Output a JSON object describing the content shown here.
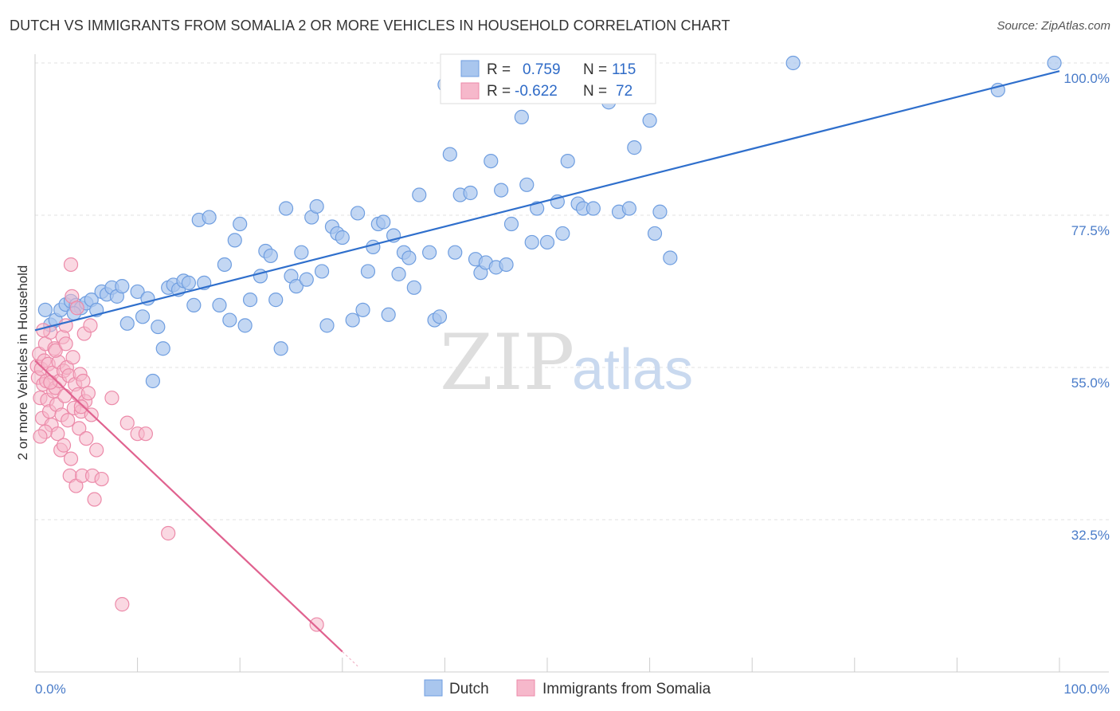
{
  "title": "DUTCH VS IMMIGRANTS FROM SOMALIA 2 OR MORE VEHICLES IN HOUSEHOLD CORRELATION CHART",
  "source": "Source: ZipAtlas.com",
  "watermark": {
    "zip": "ZIP",
    "atlas": "atlas"
  },
  "colors": {
    "dutch_fill": "#a9c6ee",
    "dutch_stroke": "#6f9ee0",
    "dutch_line": "#2f6fcc",
    "somalia_fill": "#f6b8cb",
    "somalia_stroke": "#ec8aa9",
    "somalia_line": "#e0628f",
    "grid": "#e2e2e2",
    "tick_label": "#4a7cc9"
  },
  "legend_top": {
    "rows": [
      {
        "r_label": "R =",
        "r_value": "0.759",
        "n_label": "N =",
        "n_value": "115"
      },
      {
        "r_label": "R =",
        "r_value": "-0.622",
        "n_label": "N =",
        "n_value": "72"
      }
    ]
  },
  "legend_bottom": {
    "items": [
      "Dutch",
      "Immigrants from Somalia"
    ]
  },
  "chart_data": {
    "type": "scatter",
    "ylabel": "2 or more Vehicles in Household",
    "xlabel": "",
    "x_tick_labels": [
      "0.0%",
      "100.0%"
    ],
    "y_tick_labels": [
      "100.0%",
      "77.5%",
      "55.0%",
      "32.5%"
    ],
    "y_ticks": [
      100.0,
      77.5,
      55.0,
      32.5
    ],
    "xlim": [
      0,
      100
    ],
    "ylim": [
      12.5,
      102
    ],
    "grid": true,
    "legend": "top-center and bottom",
    "series": [
      {
        "name": "Dutch",
        "r": 0.759,
        "n": 115,
        "trend": {
          "x": [
            0,
            100
          ],
          "y": [
            60.5,
            98.8
          ]
        },
        "points": [
          [
            1.5,
            61.3
          ],
          [
            2.0,
            62.0
          ],
          [
            2.5,
            63.5
          ],
          [
            3.0,
            64.3
          ],
          [
            3.5,
            64.8
          ],
          [
            4.0,
            64.2
          ],
          [
            4.5,
            63.8
          ],
          [
            5.0,
            64.5
          ],
          [
            5.5,
            65.0
          ],
          [
            6.0,
            63.5
          ],
          [
            6.5,
            66.2
          ],
          [
            7.0,
            65.8
          ],
          [
            7.5,
            66.8
          ],
          [
            8.0,
            65.5
          ],
          [
            8.5,
            67.0
          ],
          [
            9.0,
            61.5
          ],
          [
            10.0,
            66.2
          ],
          [
            10.5,
            62.5
          ],
          [
            11.0,
            65.2
          ],
          [
            11.5,
            53.0
          ],
          [
            12.0,
            61.0
          ],
          [
            12.5,
            57.8
          ],
          [
            13.0,
            66.8
          ],
          [
            13.5,
            67.2
          ],
          [
            14.0,
            66.5
          ],
          [
            14.5,
            67.8
          ],
          [
            15.0,
            67.5
          ],
          [
            15.5,
            64.2
          ],
          [
            16.0,
            76.8
          ],
          [
            16.5,
            67.5
          ],
          [
            17.0,
            77.2
          ],
          [
            18.0,
            64.2
          ],
          [
            18.5,
            70.2
          ],
          [
            19.0,
            62.0
          ],
          [
            19.5,
            73.8
          ],
          [
            20.0,
            76.2
          ],
          [
            20.5,
            61.2
          ],
          [
            21.0,
            65.0
          ],
          [
            22.0,
            68.5
          ],
          [
            22.5,
            72.2
          ],
          [
            23.0,
            71.5
          ],
          [
            23.5,
            65.0
          ],
          [
            24.0,
            57.8
          ],
          [
            24.5,
            78.5
          ],
          [
            25.0,
            68.5
          ],
          [
            25.5,
            67.0
          ],
          [
            26.0,
            72.0
          ],
          [
            26.5,
            68.0
          ],
          [
            27.0,
            77.2
          ],
          [
            27.5,
            78.8
          ],
          [
            28.0,
            69.2
          ],
          [
            28.5,
            61.2
          ],
          [
            29.0,
            75.8
          ],
          [
            29.5,
            74.8
          ],
          [
            30.0,
            74.2
          ],
          [
            31.0,
            62.0
          ],
          [
            31.5,
            77.8
          ],
          [
            32.0,
            63.5
          ],
          [
            32.5,
            69.2
          ],
          [
            33.0,
            72.8
          ],
          [
            33.5,
            76.2
          ],
          [
            34.0,
            76.5
          ],
          [
            34.5,
            62.8
          ],
          [
            35.0,
            74.5
          ],
          [
            35.5,
            68.8
          ],
          [
            36.0,
            72.0
          ],
          [
            36.5,
            71.2
          ],
          [
            37.0,
            66.8
          ],
          [
            37.5,
            80.5
          ],
          [
            38.5,
            72.0
          ],
          [
            39.0,
            62.0
          ],
          [
            39.5,
            62.5
          ],
          [
            40.0,
            96.8
          ],
          [
            40.5,
            86.5
          ],
          [
            41.0,
            72.0
          ],
          [
            41.5,
            80.5
          ],
          [
            42.5,
            80.8
          ],
          [
            43.0,
            71.0
          ],
          [
            43.5,
            69.0
          ],
          [
            44.0,
            70.5
          ],
          [
            44.5,
            85.5
          ],
          [
            45.0,
            69.8
          ],
          [
            45.5,
            81.2
          ],
          [
            46.0,
            70.2
          ],
          [
            46.5,
            76.2
          ],
          [
            47.5,
            92.0
          ],
          [
            48.0,
            82.0
          ],
          [
            48.5,
            73.5
          ],
          [
            49.0,
            78.5
          ],
          [
            50.0,
            73.5
          ],
          [
            51.0,
            79.5
          ],
          [
            51.5,
            74.8
          ],
          [
            52.0,
            85.5
          ],
          [
            53.0,
            79.2
          ],
          [
            53.5,
            78.5
          ],
          [
            54.5,
            78.5
          ],
          [
            55.0,
            98.5
          ],
          [
            56.0,
            94.2
          ],
          [
            57.0,
            78.0
          ],
          [
            58.0,
            78.5
          ],
          [
            58.5,
            87.5
          ],
          [
            60.0,
            91.5
          ],
          [
            60.5,
            74.8
          ],
          [
            61.0,
            78.0
          ],
          [
            62.0,
            71.2
          ],
          [
            74.0,
            100.0
          ],
          [
            94.0,
            96.0
          ],
          [
            99.5,
            100.0
          ],
          [
            1.0,
            63.5
          ],
          [
            3.8,
            63.0
          ]
        ]
      },
      {
        "name": "Immigrants from Somalia",
        "r": -0.622,
        "n": 72,
        "trend": {
          "x": [
            0,
            30
          ],
          "y": [
            56.0,
            13.0
          ]
        },
        "points": [
          [
            0.2,
            55.2
          ],
          [
            0.3,
            53.5
          ],
          [
            0.4,
            57.0
          ],
          [
            0.5,
            50.5
          ],
          [
            0.6,
            54.8
          ],
          [
            0.7,
            47.5
          ],
          [
            0.8,
            52.5
          ],
          [
            0.9,
            56.0
          ],
          [
            1.0,
            58.5
          ],
          [
            1.1,
            53.0
          ],
          [
            1.2,
            50.2
          ],
          [
            1.3,
            55.5
          ],
          [
            1.4,
            48.5
          ],
          [
            1.5,
            60.2
          ],
          [
            1.6,
            46.5
          ],
          [
            1.7,
            54.2
          ],
          [
            1.8,
            51.5
          ],
          [
            1.9,
            57.8
          ],
          [
            2.0,
            52.0
          ],
          [
            2.1,
            49.5
          ],
          [
            2.2,
            45.2
          ],
          [
            2.3,
            55.8
          ],
          [
            2.4,
            53.0
          ],
          [
            2.5,
            42.8
          ],
          [
            2.6,
            48.0
          ],
          [
            2.7,
            59.5
          ],
          [
            2.8,
            54.5
          ],
          [
            2.9,
            50.8
          ],
          [
            3.0,
            61.2
          ],
          [
            3.1,
            55.0
          ],
          [
            3.2,
            47.2
          ],
          [
            3.3,
            53.8
          ],
          [
            3.4,
            39.0
          ],
          [
            3.5,
            41.5
          ],
          [
            3.6,
            65.5
          ],
          [
            3.7,
            56.5
          ],
          [
            3.8,
            49.0
          ],
          [
            3.9,
            52.5
          ],
          [
            4.0,
            37.5
          ],
          [
            4.1,
            63.8
          ],
          [
            4.2,
            51.0
          ],
          [
            4.3,
            46.0
          ],
          [
            4.4,
            54.0
          ],
          [
            4.5,
            48.5
          ],
          [
            4.6,
            39.0
          ],
          [
            4.7,
            53.0
          ],
          [
            4.8,
            60.0
          ],
          [
            4.9,
            50.0
          ],
          [
            5.0,
            44.5
          ],
          [
            5.2,
            51.2
          ],
          [
            5.4,
            61.2
          ],
          [
            5.5,
            48.0
          ],
          [
            5.6,
            39.0
          ],
          [
            5.8,
            35.5
          ],
          [
            6.0,
            42.8
          ],
          [
            7.5,
            50.5
          ],
          [
            9.0,
            46.8
          ],
          [
            10.0,
            45.2
          ],
          [
            10.8,
            45.2
          ],
          [
            13.0,
            30.5
          ],
          [
            8.5,
            20.0
          ],
          [
            27.5,
            17.0
          ],
          [
            2.0,
            57.5
          ],
          [
            3.5,
            70.2
          ],
          [
            1.0,
            45.5
          ],
          [
            4.5,
            49.2
          ],
          [
            0.5,
            44.8
          ],
          [
            2.8,
            43.5
          ],
          [
            1.5,
            52.8
          ],
          [
            6.5,
            38.5
          ],
          [
            3.0,
            58.5
          ],
          [
            0.8,
            60.5
          ]
        ]
      }
    ]
  }
}
